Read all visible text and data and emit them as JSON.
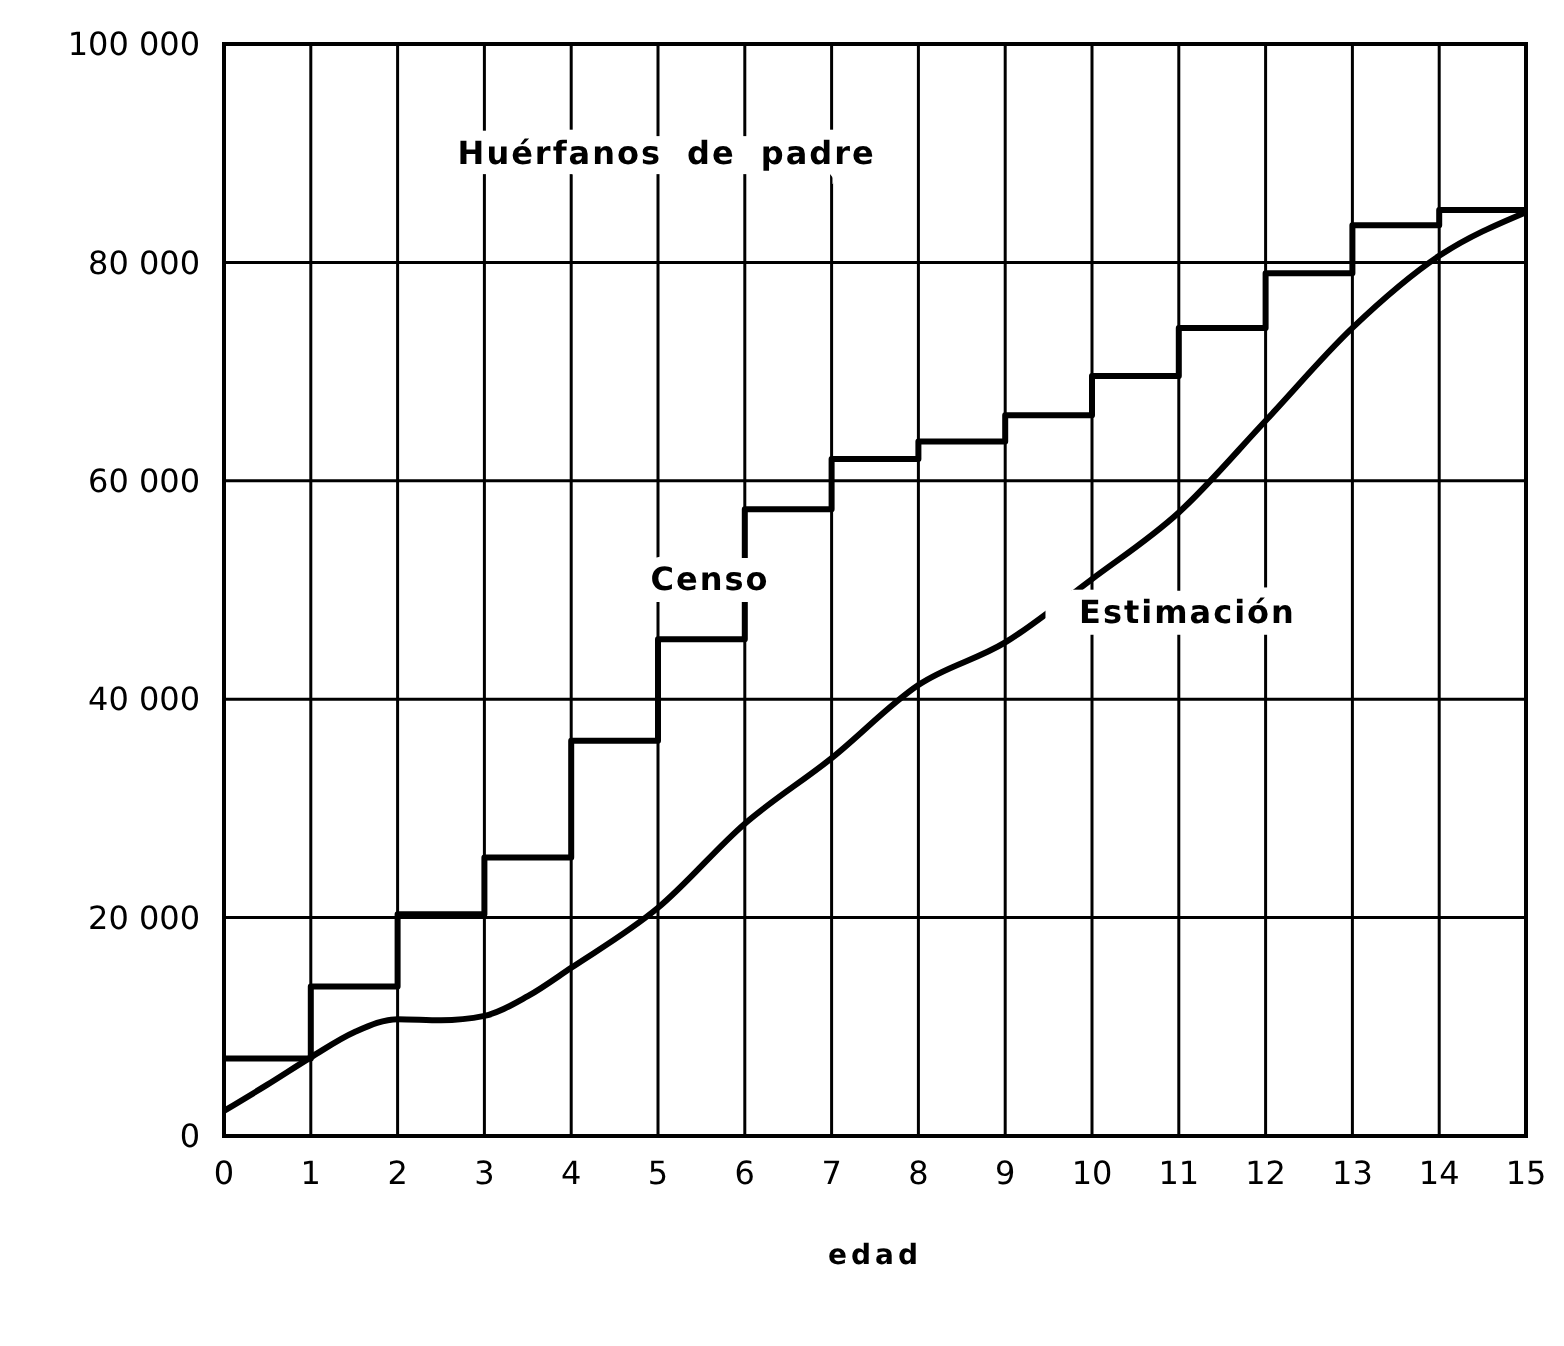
{
  "chart_data": {
    "type": "line",
    "xlabel": "edad",
    "annotations": [
      "Huérfanos de padre"
    ],
    "xlim": [
      0,
      15
    ],
    "ylim": [
      0,
      100000
    ],
    "xticks": [
      0,
      1,
      2,
      3,
      4,
      5,
      6,
      7,
      8,
      9,
      10,
      11,
      12,
      13,
      14,
      15
    ],
    "yticks": [
      0,
      {
        "value": 20000,
        "label": "20 000"
      },
      {
        "value": 40000,
        "label": "40 000"
      },
      {
        "value": 60000,
        "label": "60 000"
      },
      {
        "value": 80000,
        "label": "80 000"
      },
      {
        "value": 100000,
        "label": "100 000"
      }
    ],
    "grid": true,
    "marker": "none",
    "line_style": "solid",
    "series": [
      {
        "name": "Censo",
        "type": "step",
        "color": "#000000",
        "x": [
          0,
          1,
          2,
          3,
          4,
          5,
          6,
          7,
          8,
          9,
          10,
          11,
          12,
          13,
          14,
          15
        ],
        "values": [
          7100,
          13700,
          20300,
          25500,
          36200,
          45500,
          57400,
          62000,
          63600,
          66000,
          69600,
          74000,
          79000,
          83400,
          84800,
          84800
        ]
      },
      {
        "name": "Estimación",
        "color": "#000000",
        "x": [
          0,
          0.5,
          1,
          1.5,
          2,
          2.5,
          3,
          3.5,
          4,
          5,
          6,
          7,
          8,
          9,
          10,
          11,
          12,
          13,
          14,
          15
        ],
        "values": [
          2300,
          4700,
          7200,
          9500,
          10700,
          10600,
          11000,
          12800,
          15400,
          20900,
          28600,
          34600,
          41300,
          45200,
          51000,
          57100,
          65500,
          74000,
          80600,
          84600
        ]
      }
    ]
  }
}
